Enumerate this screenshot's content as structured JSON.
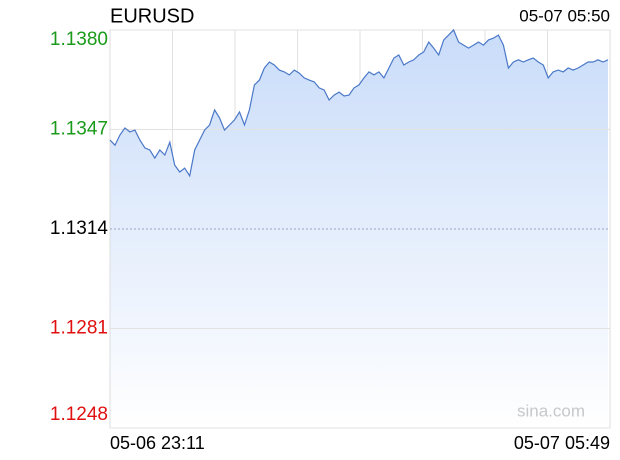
{
  "chart_data": {
    "type": "area",
    "title": "EURUSD",
    "timestamp": "05-07 05:50",
    "watermark": "sina.com",
    "color": "#4a78c8",
    "fill": "#c9dcf9",
    "categories": [
      "05-06 23:11",
      null,
      null,
      null,
      null,
      null,
      null,
      null,
      null,
      null,
      null,
      null,
      null,
      null,
      null,
      null,
      null,
      null,
      null,
      null,
      null,
      null,
      null,
      null,
      null,
      null,
      null,
      null,
      null,
      null,
      null,
      null,
      null,
      null,
      null,
      null,
      null,
      null,
      null,
      null,
      null,
      null,
      null,
      null,
      null,
      null,
      null,
      null,
      null,
      null,
      null,
      null,
      null,
      null,
      null,
      null,
      null,
      null,
      null,
      null,
      null,
      null,
      null,
      null,
      null,
      null,
      null,
      null,
      null,
      null,
      null,
      null,
      null,
      null,
      null,
      null,
      null,
      null,
      null,
      null,
      null,
      null,
      null,
      null,
      null,
      null,
      null,
      null,
      null,
      null,
      null,
      null,
      null,
      null,
      null,
      null,
      null,
      null,
      null,
      null,
      "05-07 05:49"
    ],
    "values": [
      1.13435,
      1.13418,
      1.13452,
      1.13475,
      1.13462,
      1.13468,
      1.13435,
      1.13409,
      1.13402,
      1.13375,
      1.13402,
      1.13385,
      1.13428,
      1.13352,
      1.13329,
      1.13342,
      1.13316,
      1.13402,
      1.13435,
      1.13468,
      1.13485,
      1.13535,
      1.13508,
      1.13468,
      1.13485,
      1.13502,
      1.13528,
      1.13485,
      1.13535,
      1.13618,
      1.13634,
      1.13674,
      1.13694,
      1.13684,
      1.13667,
      1.13661,
      1.13651,
      1.13667,
      1.13657,
      1.13641,
      1.13634,
      1.13628,
      1.13608,
      1.13601,
      1.13568,
      1.13584,
      1.13594,
      1.13581,
      1.13584,
      1.13608,
      1.13618,
      1.13641,
      1.13661,
      1.13651,
      1.13661,
      1.13641,
      1.13674,
      1.13707,
      1.13717,
      1.13684,
      1.13694,
      1.13701,
      1.13717,
      1.13727,
      1.1376,
      1.1374,
      1.13717,
      1.13767,
      1.13783,
      1.138,
      1.1376,
      1.1375,
      1.1374,
      1.1375,
      1.1376,
      1.1375,
      1.13767,
      1.13773,
      1.13783,
      1.1375,
      1.13674,
      1.13694,
      1.13701,
      1.13694,
      1.13701,
      1.13707,
      1.13694,
      1.13684,
      1.13641,
      1.13661,
      1.13667,
      1.13661,
      1.13674,
      1.13667,
      1.13674,
      1.13684,
      1.13694,
      1.13694,
      1.13701,
      1.13694,
      1.13701
    ],
    "ylim": [
      1.1248,
      1.138
    ],
    "yticks": [
      {
        "value": 1.138,
        "label": "1.1380"
      },
      1.1347,
      1.1314,
      1.1281,
      1.1248
    ],
    "ytick_colors": [
      "#1a9a1a",
      "#1a9a1a",
      "#000000",
      "#e01010",
      "#e01010"
    ],
    "grid": true
  }
}
